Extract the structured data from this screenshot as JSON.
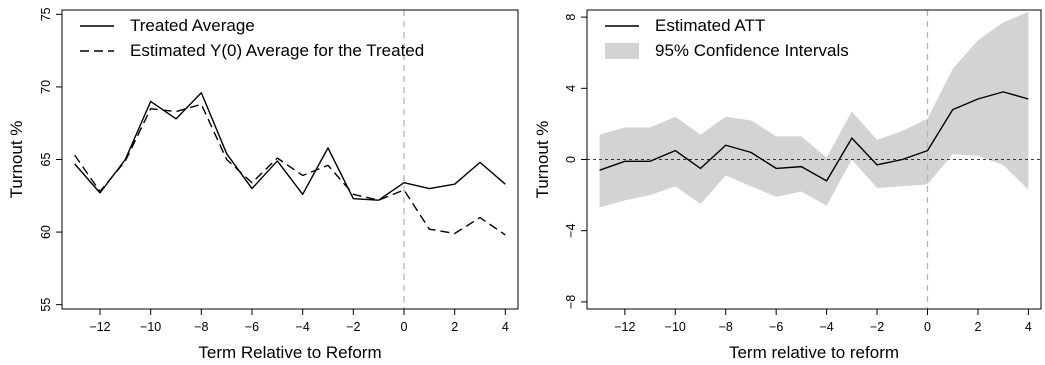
{
  "chart_data": [
    {
      "type": "line",
      "title": "",
      "xlabel": "Term Relative to Reform",
      "ylabel": "Turnout %",
      "xlim": [
        -13.5,
        4.5
      ],
      "ylim": [
        54.7,
        75.3
      ],
      "xticks": [
        -12,
        -10,
        -8,
        -6,
        -4,
        -2,
        0,
        2,
        4
      ],
      "xtick_labels": [
        "−12",
        "−10",
        "−8",
        "−6",
        "−4",
        "−2",
        "0",
        "2",
        "4"
      ],
      "yticks": [
        55,
        60,
        65,
        70,
        75
      ],
      "ytick_labels": [
        "55",
        "60",
        "65",
        "70",
        "75"
      ],
      "vline": 0,
      "grid": false,
      "legend_position": "top-left",
      "x": [
        -13,
        -12,
        -11,
        -10,
        -9,
        -8,
        -7,
        -6,
        -5,
        -4,
        -3,
        -2,
        -1,
        0,
        1,
        2,
        3,
        4
      ],
      "series": [
        {
          "name": "Treated Average",
          "style": "solid",
          "values": [
            64.7,
            62.7,
            65.0,
            69.0,
            67.8,
            69.6,
            65.4,
            63.0,
            64.9,
            62.6,
            65.8,
            62.3,
            62.2,
            63.4,
            63.0,
            63.3,
            64.8,
            63.3
          ]
        },
        {
          "name": "Estimated Y(0) Average for the Treated",
          "style": "dashed",
          "values": [
            65.3,
            62.8,
            64.9,
            68.5,
            68.3,
            68.8,
            65.0,
            63.4,
            65.1,
            63.9,
            64.6,
            62.6,
            62.2,
            62.9,
            60.2,
            59.9,
            61.0,
            59.8
          ]
        }
      ]
    },
    {
      "type": "line",
      "title": "",
      "xlabel": "Term relative to reform",
      "ylabel": "Turnout %",
      "xlim": [
        -13.5,
        4.5
      ],
      "ylim": [
        -8.4,
        8.4
      ],
      "xticks": [
        -12,
        -10,
        -8,
        -6,
        -4,
        -2,
        0,
        2,
        4
      ],
      "xtick_labels": [
        "−12",
        "−10",
        "−8",
        "−6",
        "−4",
        "−2",
        "0",
        "2",
        "4"
      ],
      "yticks": [
        -8,
        -4,
        0,
        4,
        8
      ],
      "ytick_labels": [
        "−8",
        "−4",
        "0",
        "4",
        "8"
      ],
      "vline": 0,
      "hline": 0,
      "grid": false,
      "legend_position": "top-left",
      "x": [
        -13,
        -12,
        -11,
        -10,
        -9,
        -8,
        -7,
        -6,
        -5,
        -4,
        -3,
        -2,
        -1,
        0,
        1,
        2,
        3,
        4
      ],
      "series": [
        {
          "name": "Estimated ATT",
          "style": "solid",
          "values": [
            -0.6,
            -0.1,
            -0.1,
            0.5,
            -0.5,
            0.8,
            0.4,
            -0.5,
            -0.4,
            -1.2,
            1.2,
            -0.3,
            0.0,
            0.5,
            2.8,
            3.4,
            3.8,
            3.4
          ]
        }
      ],
      "band": {
        "name": "95% Confidence Intervals",
        "color": "#d3d3d3",
        "lower": [
          -2.7,
          -2.3,
          -2.0,
          -1.5,
          -2.5,
          -0.9,
          -1.5,
          -2.1,
          -1.8,
          -2.6,
          0.0,
          -1.6,
          -1.5,
          -1.4,
          0.3,
          0.2,
          -0.3,
          -1.7
        ],
        "upper": [
          1.4,
          1.8,
          1.8,
          2.4,
          1.4,
          2.4,
          2.2,
          1.3,
          1.3,
          0.1,
          2.7,
          1.1,
          1.6,
          2.3,
          5.1,
          6.7,
          7.7,
          8.3
        ]
      }
    }
  ]
}
